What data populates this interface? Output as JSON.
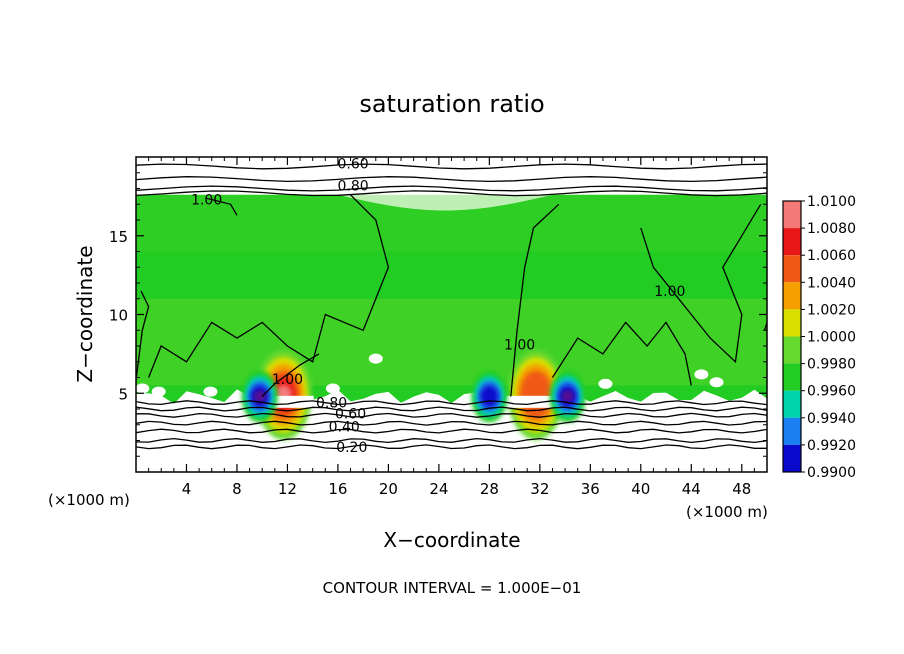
{
  "chart_data": {
    "type": "heatmap",
    "title": "saturation ratio",
    "xlabel": "X−coordinate",
    "ylabel": "Z−coordinate",
    "x_units": "(×1000 m)",
    "x_units_right": "(×1000 m)",
    "xlim": [
      0,
      50
    ],
    "ylim": [
      0,
      20
    ],
    "x_ticks": [
      4,
      8,
      12,
      16,
      20,
      24,
      28,
      32,
      36,
      40,
      44,
      48
    ],
    "y_ticks": [
      5,
      10,
      15
    ],
    "footer": "CONTOUR INTERVAL = 1.000E−01",
    "colorbar": {
      "levels": [
        "1.0100",
        "1.0080",
        "1.0060",
        "1.0040",
        "1.0020",
        "1.0000",
        "0.9980",
        "0.9960",
        "0.9940",
        "0.9920",
        "0.9900"
      ],
      "colors": [
        "#f47a7a",
        "#e81818",
        "#f05a14",
        "#f5a000",
        "#d9e000",
        "#66d82e",
        "#22cc22",
        "#00d4aa",
        "#1a7ff0",
        "#0a0acc",
        "#5a1090"
      ]
    },
    "contour_labels": [
      {
        "text": "0.60",
        "x": 17.2,
        "z": 19.6
      },
      {
        "text": "0.80",
        "x": 17.2,
        "z": 18.2
      },
      {
        "text": "1.00",
        "x": 5.6,
        "z": 17.3
      },
      {
        "text": "1.00",
        "x": 12.0,
        "z": 5.9
      },
      {
        "text": "1.00",
        "x": 30.4,
        "z": 8.1
      },
      {
        "text": "1.00",
        "x": 42.3,
        "z": 11.5
      },
      {
        "text": "0.80",
        "x": 15.5,
        "z": 4.4
      },
      {
        "text": "0.60",
        "x": 17.0,
        "z": 3.7
      },
      {
        "text": "0.40",
        "x": 16.5,
        "z": 2.9
      },
      {
        "text": "0.20",
        "x": 17.1,
        "z": 1.6
      }
    ],
    "peaks": [
      {
        "x": 11.7,
        "z": 4.9,
        "value": 1.01
      },
      {
        "x": 31.7,
        "z": 4.9,
        "value": 1.006
      },
      {
        "x": 9.8,
        "z": 4.8,
        "value": 0.992
      },
      {
        "x": 28.0,
        "z": 4.8,
        "value": 0.994
      },
      {
        "x": 34.2,
        "z": 4.8,
        "value": 0.992
      }
    ]
  }
}
